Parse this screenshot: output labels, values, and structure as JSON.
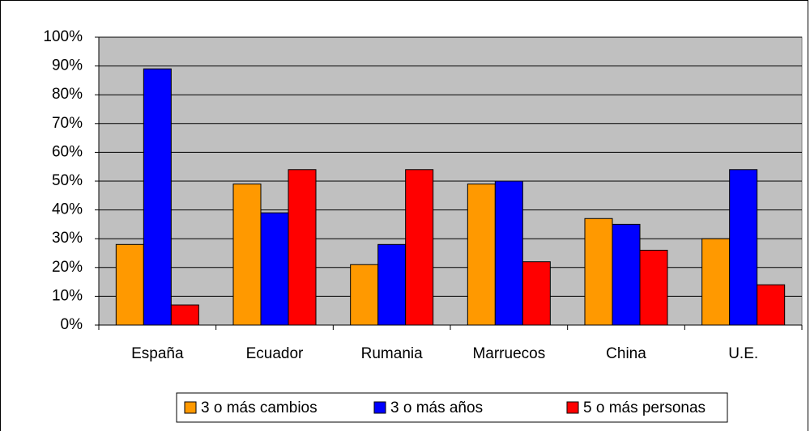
{
  "chart_data": {
    "type": "bar",
    "categories": [
      "España",
      "Ecuador",
      "Rumania",
      "Marruecos",
      "China",
      "U.E."
    ],
    "series": [
      {
        "name": "3 o más cambios",
        "color": "#ff9900",
        "values": [
          28,
          49,
          21,
          49,
          37,
          30
        ]
      },
      {
        "name": "3 o más años",
        "color": "#0000ff",
        "values": [
          89,
          39,
          28,
          50,
          35,
          54
        ]
      },
      {
        "name": "5 o más personas",
        "color": "#ff0000",
        "values": [
          7,
          54,
          54,
          22,
          26,
          14
        ]
      }
    ],
    "ylim": [
      0,
      100
    ],
    "yticks": [
      {
        "value": 0,
        "label": "0%"
      },
      {
        "value": 10,
        "label": "10%"
      },
      {
        "value": 20,
        "label": "20%"
      },
      {
        "value": 30,
        "label": "30%"
      },
      {
        "value": 40,
        "label": "40%"
      },
      {
        "value": 50,
        "label": "50%"
      },
      {
        "value": 60,
        "label": "60%"
      },
      {
        "value": 70,
        "label": "70%"
      },
      {
        "value": 80,
        "label": "80%"
      },
      {
        "value": 90,
        "label": "90%"
      },
      {
        "value": 100,
        "label": "100%"
      }
    ],
    "grid": true,
    "legend": "bottom"
  }
}
